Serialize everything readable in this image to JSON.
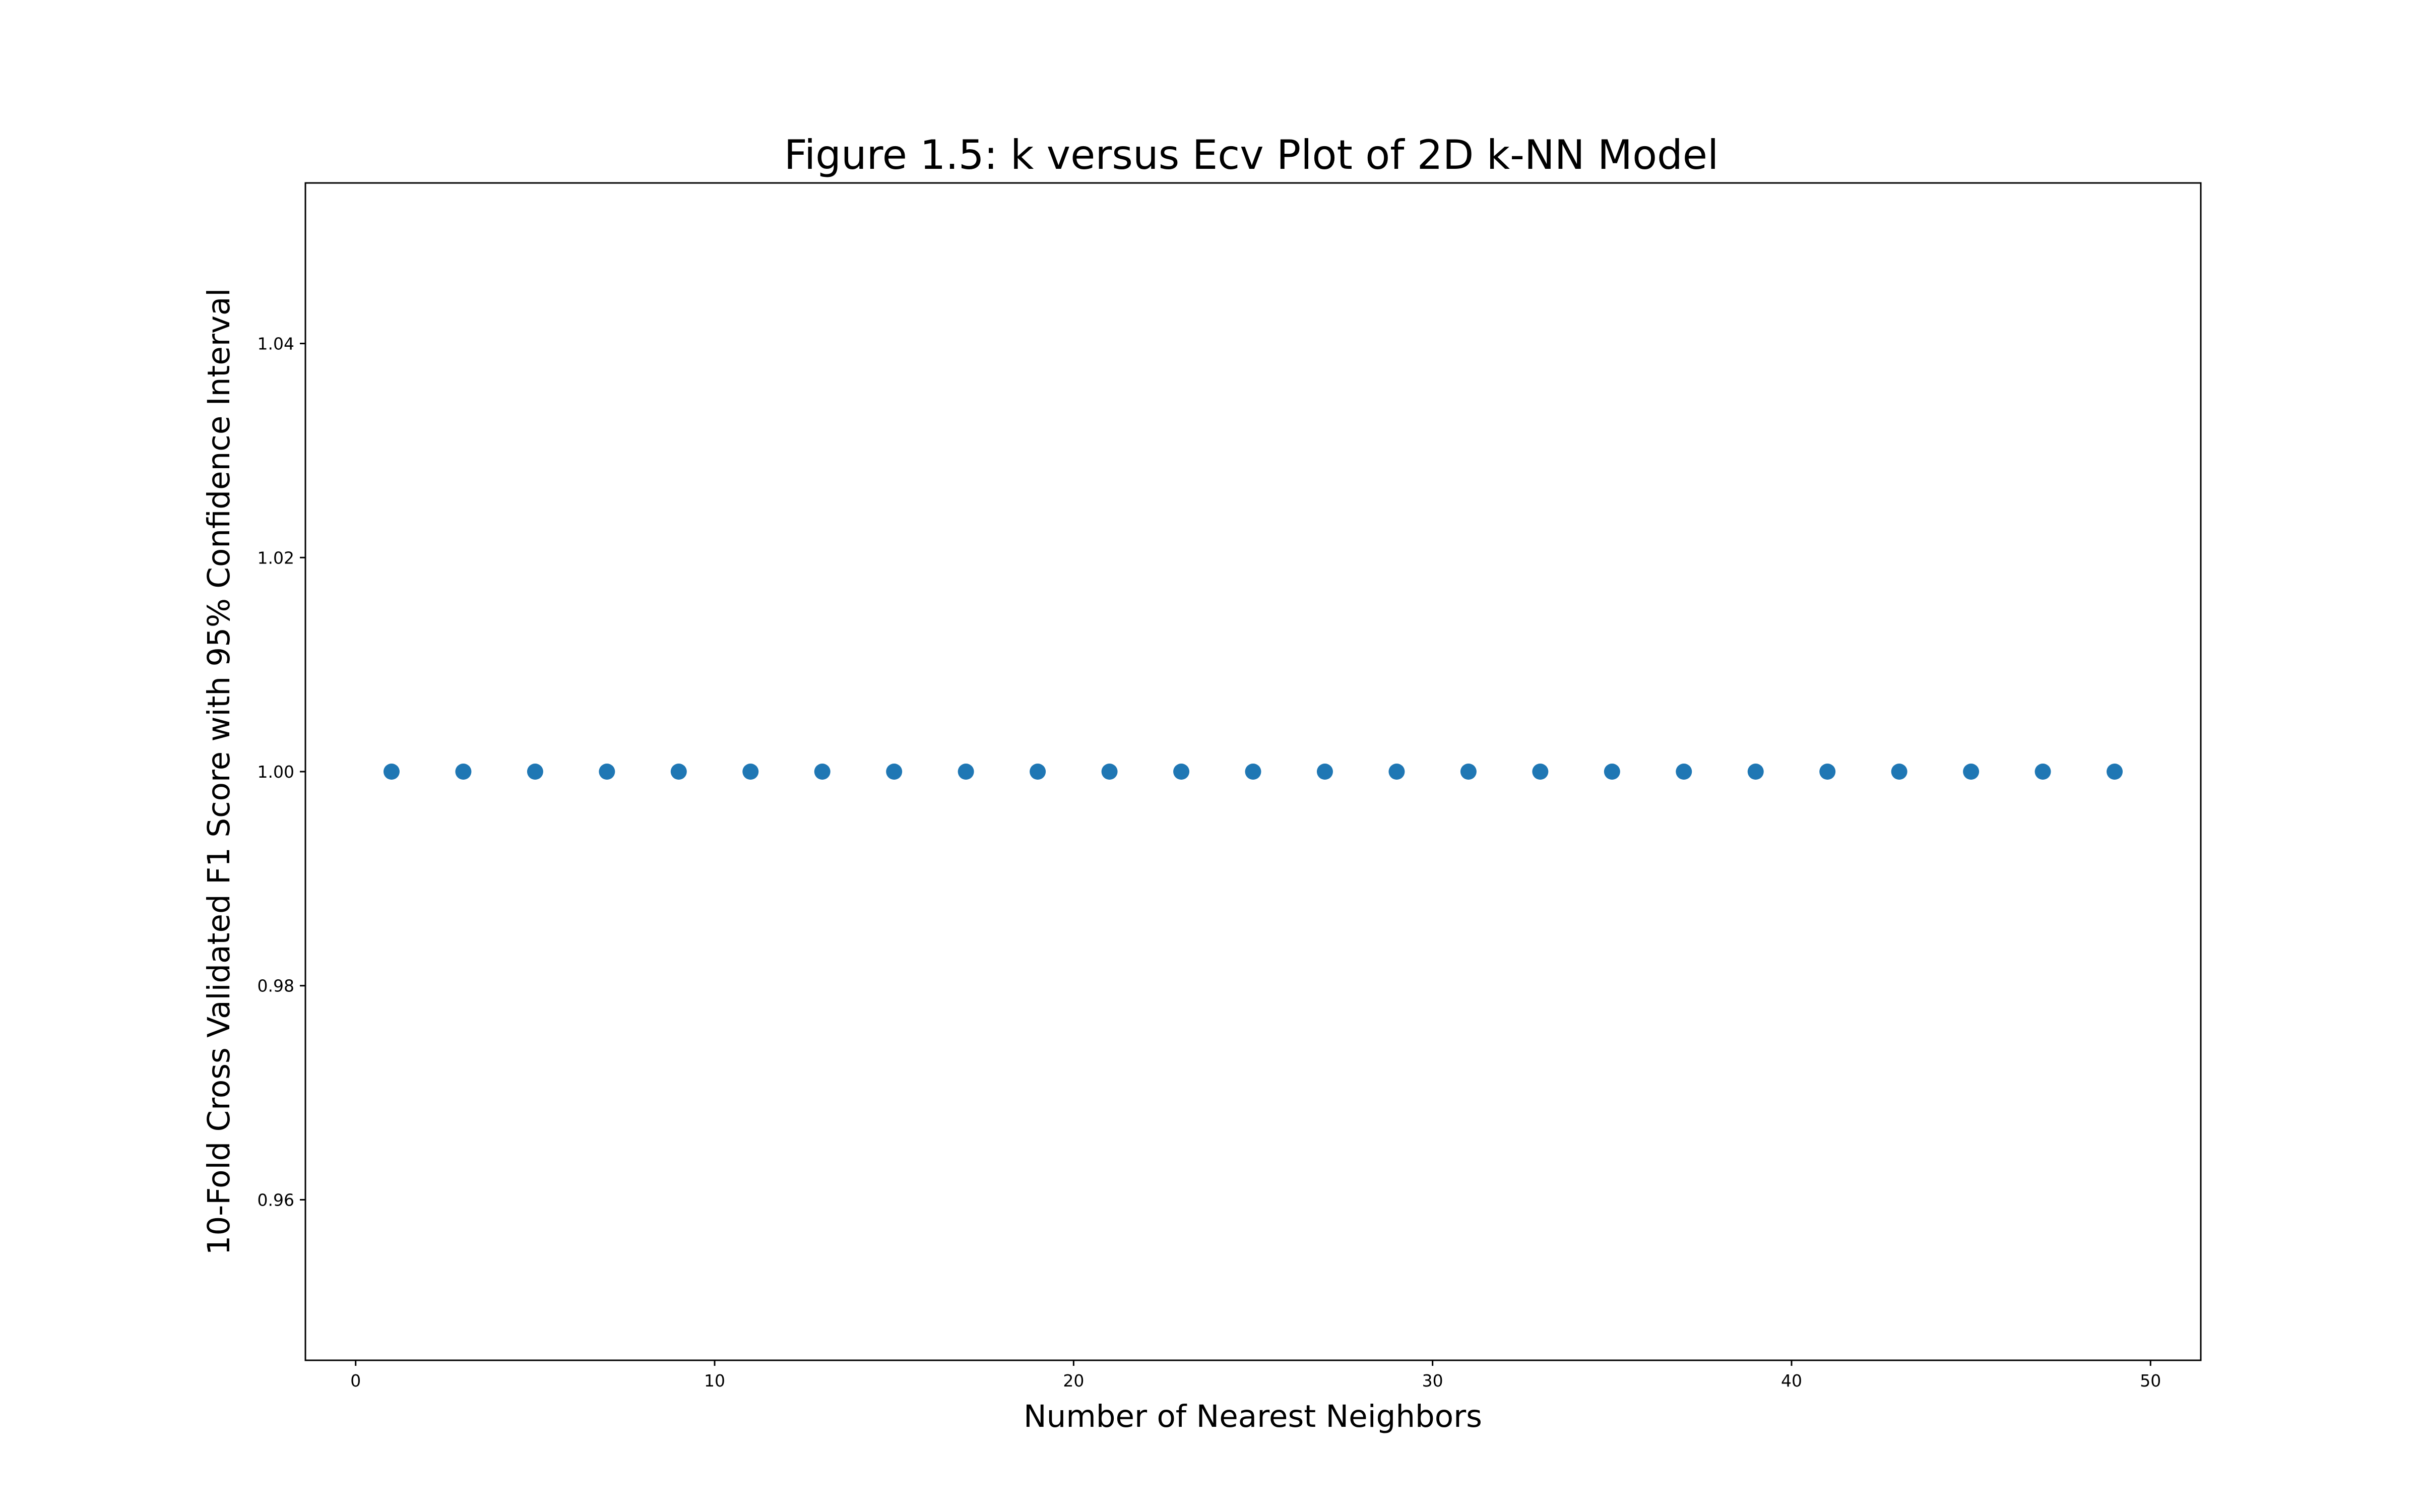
{
  "chart_data": {
    "type": "scatter",
    "title": "Figure 1.5: k versus Ecv Plot of 2D k-NN Model",
    "xlabel": "Number of Nearest Neighbors",
    "ylabel": "10-Fold Cross Validated F1 Score with 95% Confidence Interval",
    "x": [
      1,
      3,
      5,
      7,
      9,
      11,
      13,
      15,
      17,
      19,
      21,
      23,
      25,
      27,
      29,
      31,
      33,
      35,
      37,
      39,
      41,
      43,
      45,
      47,
      49
    ],
    "y": [
      1.0,
      1.0,
      1.0,
      1.0,
      1.0,
      1.0,
      1.0,
      1.0,
      1.0,
      1.0,
      1.0,
      1.0,
      1.0,
      1.0,
      1.0,
      1.0,
      1.0,
      1.0,
      1.0,
      1.0,
      1.0,
      1.0,
      1.0,
      1.0,
      1.0
    ],
    "xlim": [
      -1.4,
      51.4
    ],
    "ylim": [
      0.945,
      1.055
    ],
    "xticks": [
      0,
      10,
      20,
      30,
      40,
      50
    ],
    "xtick_labels": [
      "0",
      "10",
      "20",
      "30",
      "40",
      "50"
    ],
    "yticks": [
      0.96,
      0.98,
      1.0,
      1.02,
      1.04
    ],
    "ytick_labels": [
      "0.96",
      "0.98",
      "1.00",
      "1.02",
      "1.04"
    ],
    "marker_color": "#1f77b4",
    "grid": false,
    "legend": "none"
  }
}
